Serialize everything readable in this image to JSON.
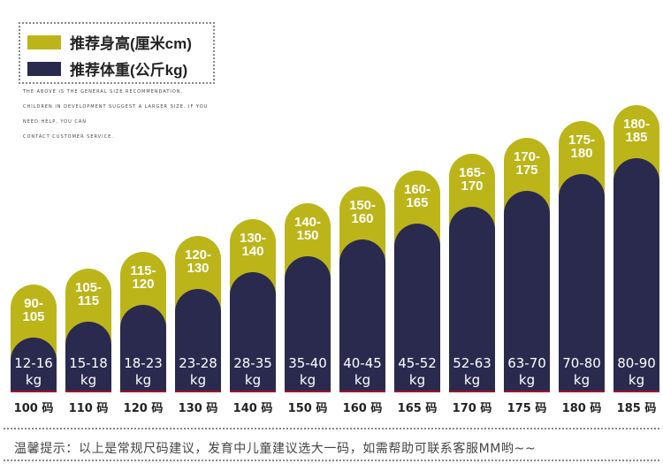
{
  "legend": {
    "height_label": "推荐身高(厘米cm)",
    "weight_label": "推荐体重(公斤kg)",
    "height_color": "#bcb51a",
    "weight_color": "#2a2a4f"
  },
  "notes": [
    "THE ABOVE IS THE GENERAL SIZE RECOMMENDATION.",
    "CHILDREN IN DEVELOPMENT SUGGEST A LARGER SIZE. IF YOU",
    "NEED HELP, YOU CAN",
    "CONTACT CUSTOMER SERVICE."
  ],
  "sizes": [
    {
      "size": "100 码",
      "height": "90-\n105",
      "weight": "12-16\nkg"
    },
    {
      "size": "110 码",
      "height": "105-\n115",
      "weight": "15-18\nkg"
    },
    {
      "size": "120 码",
      "height": "115-\n120",
      "weight": "18-23\nkg"
    },
    {
      "size": "130 码",
      "height": "120-\n130",
      "weight": "23-28\nkg"
    },
    {
      "size": "140 码",
      "height": "130-\n140",
      "weight": "28-35\nkg"
    },
    {
      "size": "150 码",
      "height": "140-\n150",
      "weight": "35-40\nkg"
    },
    {
      "size": "160 码",
      "height": "150-\n160",
      "weight": "40-45\nkg"
    },
    {
      "size": "165 码",
      "height": "160-\n165",
      "weight": "45-52\nkg"
    },
    {
      "size": "170 码",
      "height": "165-\n170",
      "weight": "52-63\nkg"
    },
    {
      "size": "175 码",
      "height": "170-\n175",
      "weight": "63-70\nkg"
    },
    {
      "size": "180 码",
      "height": "175-\n180",
      "weight": "70-80\nkg"
    },
    {
      "size": "185 码",
      "height": "180-\n185",
      "weight": "80-90\nkg"
    }
  ],
  "tip": "温馨提示：以上是常规尺码建议，发育中儿童建议选大一码，如需帮助可联系客服MM哟~~"
}
